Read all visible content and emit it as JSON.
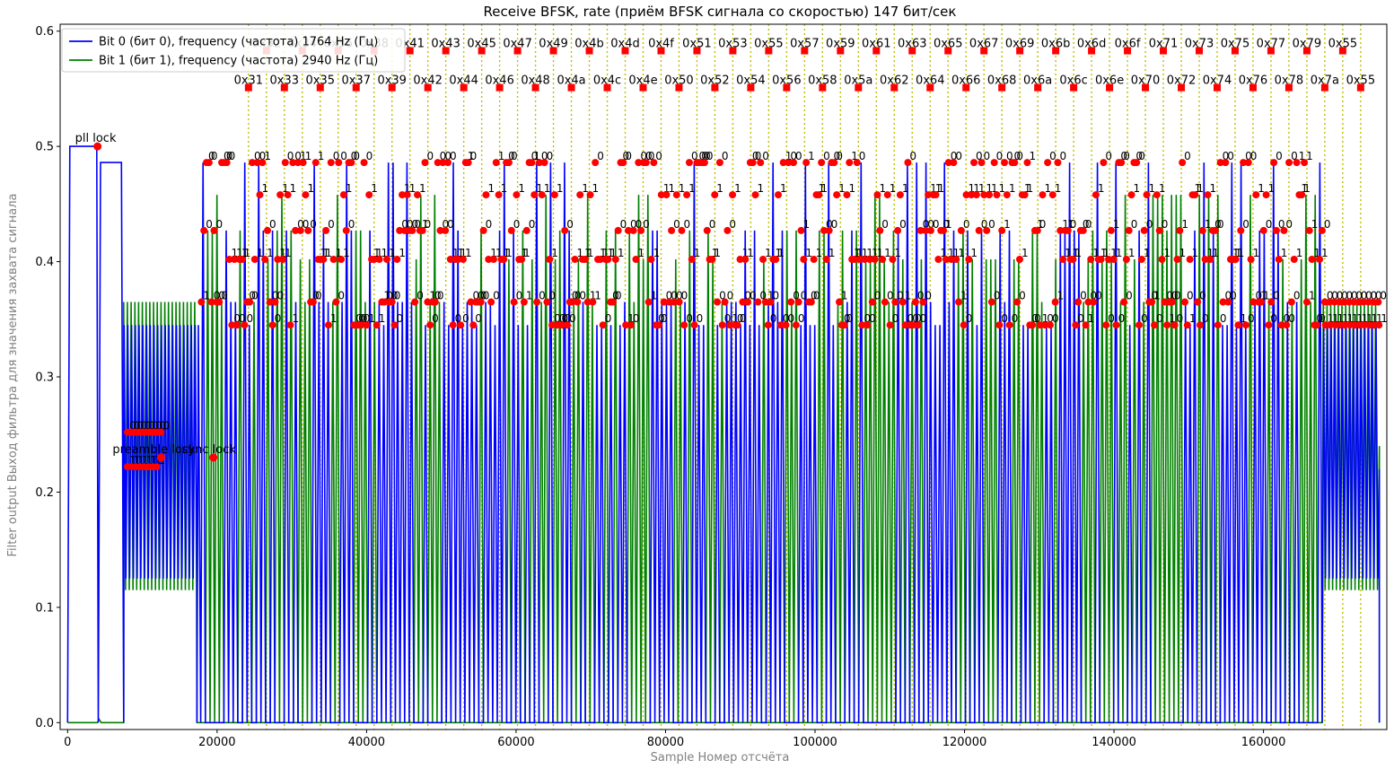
{
  "chart_data": {
    "type": "line",
    "title": "Receive BFSK, rate (приём BFSK сигнала со скоростью) 147 бит/сек",
    "xlabel": "Sample Номер отсчёта",
    "ylabel": "Filter output Выход фильтра для значения захвата сигнала",
    "xlim": [
      -1000,
      176500
    ],
    "ylim": [
      -0.006,
      0.606
    ],
    "x_ticks": [
      0,
      20000,
      40000,
      60000,
      80000,
      100000,
      120000,
      140000,
      160000
    ],
    "x_tick_labels": [
      "0",
      "20000",
      "40000",
      "60000",
      "80000",
      "100000",
      "120000",
      "140000",
      "160000"
    ],
    "y_ticks": [
      0.0,
      0.1,
      0.2,
      0.3,
      0.4,
      0.5,
      0.6
    ],
    "y_tick_labels": [
      "0.0",
      "0.1",
      "0.2",
      "0.3",
      "0.4",
      "0.5",
      "0.6"
    ],
    "grid": false,
    "legend_position": "top-left",
    "colors": {
      "bit0": "#0000ff",
      "bit1": "#008000",
      "markers": "#ff0000",
      "byte_lines": "#bfbf00",
      "axis_label": "#808080"
    },
    "series": [
      {
        "name": "Bit 0 (бит 0), frequency (частота) 1764 Hz (Гц)",
        "color": "#0000ff"
      },
      {
        "name": "Bit 1 (бит 1), frequency (частота) 2940 Hz (Гц)",
        "color": "#008000"
      }
    ],
    "pll_lock": {
      "text": "pll lock",
      "x": 4000,
      "y": 0.5
    },
    "preamble_lock": {
      "text": "preamble lock",
      "x": 12500,
      "y": 0.23
    },
    "sync_lock": {
      "text": "sync lock",
      "x": 19500,
      "y": 0.23
    },
    "preamble_bits_upper": "0000000000",
    "preamble_bits_lower": "11111111",
    "preamble_region": [
      7500,
      17300
    ],
    "data_region": [
      17300,
      168000
    ],
    "tail_region": [
      168000,
      175500
    ],
    "bit_values": {
      "zero": "0",
      "one": "1"
    },
    "byte_markers": [
      {
        "label": "0x31",
        "x": 24200,
        "y": 0.551
      },
      {
        "label": "0x32",
        "x": 26600,
        "y": 0.583
      },
      {
        "label": "0x33",
        "x": 29000,
        "y": 0.551
      },
      {
        "label": "0x34",
        "x": 31400,
        "y": 0.583
      },
      {
        "label": "0x35",
        "x": 33800,
        "y": 0.551
      },
      {
        "label": "0x36",
        "x": 36200,
        "y": 0.583
      },
      {
        "label": "0x37",
        "x": 38600,
        "y": 0.551
      },
      {
        "label": "0x38",
        "x": 41000,
        "y": 0.583
      },
      {
        "label": "0x39",
        "x": 43400,
        "y": 0.551
      },
      {
        "label": "0x41",
        "x": 45800,
        "y": 0.583
      },
      {
        "label": "0x42",
        "x": 48200,
        "y": 0.551
      },
      {
        "label": "0x43",
        "x": 50600,
        "y": 0.583
      },
      {
        "label": "0x44",
        "x": 53000,
        "y": 0.551
      },
      {
        "label": "0x45",
        "x": 55400,
        "y": 0.583
      },
      {
        "label": "0x46",
        "x": 57800,
        "y": 0.551
      },
      {
        "label": "0x47",
        "x": 60200,
        "y": 0.583
      },
      {
        "label": "0x48",
        "x": 62600,
        "y": 0.551
      },
      {
        "label": "0x49",
        "x": 65000,
        "y": 0.583
      },
      {
        "label": "0x4a",
        "x": 67400,
        "y": 0.551
      },
      {
        "label": "0x4b",
        "x": 69800,
        "y": 0.583
      },
      {
        "label": "0x4c",
        "x": 72200,
        "y": 0.551
      },
      {
        "label": "0x4d",
        "x": 74600,
        "y": 0.583
      },
      {
        "label": "0x4e",
        "x": 77000,
        "y": 0.551
      },
      {
        "label": "0x4f",
        "x": 79400,
        "y": 0.583
      },
      {
        "label": "0x50",
        "x": 81800,
        "y": 0.551
      },
      {
        "label": "0x51",
        "x": 84200,
        "y": 0.583
      },
      {
        "label": "0x52",
        "x": 86600,
        "y": 0.551
      },
      {
        "label": "0x53",
        "x": 89000,
        "y": 0.583
      },
      {
        "label": "0x54",
        "x": 91400,
        "y": 0.551
      },
      {
        "label": "0x55",
        "x": 93800,
        "y": 0.583
      },
      {
        "label": "0x56",
        "x": 96200,
        "y": 0.551
      },
      {
        "label": "0x57",
        "x": 98600,
        "y": 0.583
      },
      {
        "label": "0x58",
        "x": 101000,
        "y": 0.551
      },
      {
        "label": "0x59",
        "x": 103400,
        "y": 0.583
      },
      {
        "label": "0x5a",
        "x": 105800,
        "y": 0.551
      },
      {
        "label": "0x61",
        "x": 108200,
        "y": 0.583
      },
      {
        "label": "0x62",
        "x": 110600,
        "y": 0.551
      },
      {
        "label": "0x63",
        "x": 113000,
        "y": 0.583
      },
      {
        "label": "0x64",
        "x": 115400,
        "y": 0.551
      },
      {
        "label": "0x65",
        "x": 117800,
        "y": 0.583
      },
      {
        "label": "0x66",
        "x": 120200,
        "y": 0.551
      },
      {
        "label": "0x67",
        "x": 122600,
        "y": 0.583
      },
      {
        "label": "0x68",
        "x": 125000,
        "y": 0.551
      },
      {
        "label": "0x69",
        "x": 127400,
        "y": 0.583
      },
      {
        "label": "0x6a",
        "x": 129800,
        "y": 0.551
      },
      {
        "label": "0x6b",
        "x": 132200,
        "y": 0.583
      },
      {
        "label": "0x6c",
        "x": 134600,
        "y": 0.551
      },
      {
        "label": "0x6d",
        "x": 137000,
        "y": 0.583
      },
      {
        "label": "0x6e",
        "x": 139400,
        "y": 0.551
      },
      {
        "label": "0x6f",
        "x": 141800,
        "y": 0.583
      },
      {
        "label": "0x70",
        "x": 144200,
        "y": 0.551
      },
      {
        "label": "0x71",
        "x": 146600,
        "y": 0.583
      },
      {
        "label": "0x72",
        "x": 149000,
        "y": 0.551
      },
      {
        "label": "0x73",
        "x": 151400,
        "y": 0.583
      },
      {
        "label": "0x74",
        "x": 153800,
        "y": 0.551
      },
      {
        "label": "0x75",
        "x": 156200,
        "y": 0.583
      },
      {
        "label": "0x76",
        "x": 158600,
        "y": 0.551
      },
      {
        "label": "0x77",
        "x": 161000,
        "y": 0.583
      },
      {
        "label": "0x78",
        "x": 163400,
        "y": 0.551
      },
      {
        "label": "0x79",
        "x": 165800,
        "y": 0.583
      },
      {
        "label": "0x7a",
        "x": 168200,
        "y": 0.551
      },
      {
        "label": "0x55",
        "x": 170600,
        "y": 0.583
      },
      {
        "label": "0x55",
        "x": 173000,
        "y": 0.551
      }
    ]
  }
}
